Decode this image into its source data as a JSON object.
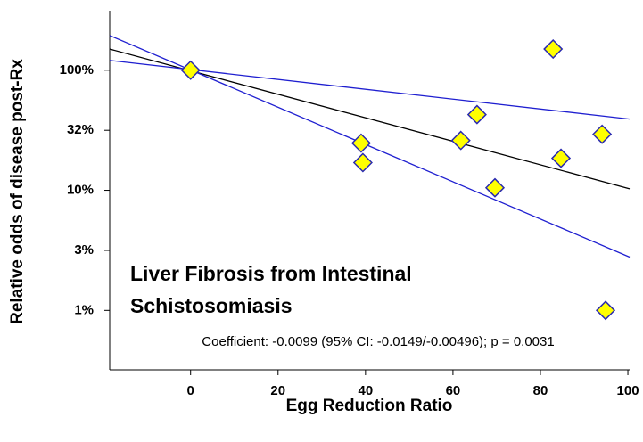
{
  "chart_data": {
    "type": "scatter",
    "xlabel": "Egg Reduction Ratio",
    "ylabel": "Relative odds of disease post-Rx",
    "annotation": [
      "Liver Fibrosis from Intestinal",
      "Schistosomiasis"
    ],
    "note": "Coefficient: -0.0099 (95% CI: -0.0149/-0.00496); p = 0.0031",
    "xlim": [
      -18.5,
      100.4
    ],
    "xticks": [
      0,
      20,
      40,
      60,
      80,
      100
    ],
    "ylim": [
      0.32,
      313
    ],
    "yscale": "log",
    "yticks": [
      {
        "value": 1,
        "label": "1%"
      },
      {
        "value": 3.16,
        "label": "3%"
      },
      {
        "value": 10,
        "label": "10%"
      },
      {
        "value": 31.6,
        "label": "32%"
      },
      {
        "value": 100,
        "label": "100%"
      }
    ],
    "series": [
      {
        "color": "#ffff00",
        "edgecolor": "#2a2ab0",
        "x": [
          0,
          82.9,
          65.5,
          39.0,
          39.4,
          61.8,
          94.1,
          84.7,
          69.6,
          94.9
        ],
        "values": [
          100,
          150,
          42.7,
          24.7,
          17.0,
          26.0,
          29.3,
          18.5,
          10.5,
          1.0
        ]
      }
    ],
    "lines": [
      {
        "color": "#000000",
        "x": [
          -18.5,
          100.4
        ],
        "values": [
          150,
          10.3
        ]
      },
      {
        "color": "#1f1fd0",
        "x": [
          -18.5,
          100.4
        ],
        "values": [
          120.6,
          39.2
        ]
      },
      {
        "color": "#1f1fd0",
        "x": [
          -18.5,
          100.4
        ],
        "values": [
          194.5,
          2.78
        ]
      }
    ]
  }
}
